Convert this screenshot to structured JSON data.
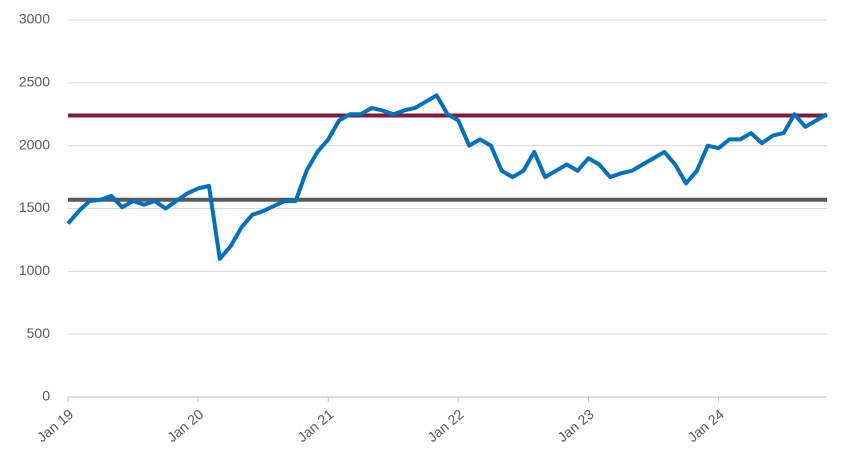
{
  "chart_data": {
    "type": "line",
    "categories": [
      "Jan 19",
      null,
      null,
      null,
      null,
      null,
      null,
      null,
      null,
      null,
      null,
      null,
      "Jan 20",
      null,
      null,
      null,
      null,
      null,
      null,
      null,
      null,
      null,
      null,
      null,
      "Jan 21",
      null,
      null,
      null,
      null,
      null,
      null,
      null,
      null,
      null,
      null,
      null,
      "Jan 22",
      null,
      null,
      null,
      null,
      null,
      null,
      null,
      null,
      null,
      null,
      null,
      "Jan 23",
      null,
      null,
      null,
      null,
      null,
      null,
      null,
      null,
      null,
      null,
      null,
      "Jan 24",
      null,
      null,
      null,
      null,
      null,
      null,
      null,
      null,
      null,
      null
    ],
    "series": [
      {
        "color": "#0070c0",
        "values": [
          1380,
          1480,
          1560,
          1570,
          1600,
          1510,
          1560,
          1530,
          1560,
          1500,
          1560,
          1620,
          1660,
          1680,
          1100,
          1200,
          1350,
          1450,
          1480,
          1520,
          1560,
          1560,
          1800,
          1950,
          2050,
          2200,
          2250,
          2250,
          2300,
          2280,
          2250,
          2280,
          2300,
          2350,
          2400,
          2250,
          2200,
          2000,
          2050,
          2000,
          1800,
          1750,
          1800,
          1950,
          1750,
          1800,
          1850,
          1800,
          1900,
          1850,
          1750,
          1780,
          1800,
          1850,
          1900,
          1950,
          1850,
          1700,
          1800,
          2000,
          1980,
          2050,
          2050,
          2100,
          2020,
          2080,
          2100,
          2250,
          2150,
          2200,
          2250
        ]
      }
    ],
    "reference_lines": [
      {
        "value": 2240,
        "color": "#7b1c3a"
      },
      {
        "value": 1570,
        "color": "#595959"
      }
    ],
    "ylim": [
      0,
      3000
    ],
    "yticks": [
      0,
      500,
      1000,
      1500,
      2000,
      2500,
      3000
    ],
    "grid": true
  }
}
